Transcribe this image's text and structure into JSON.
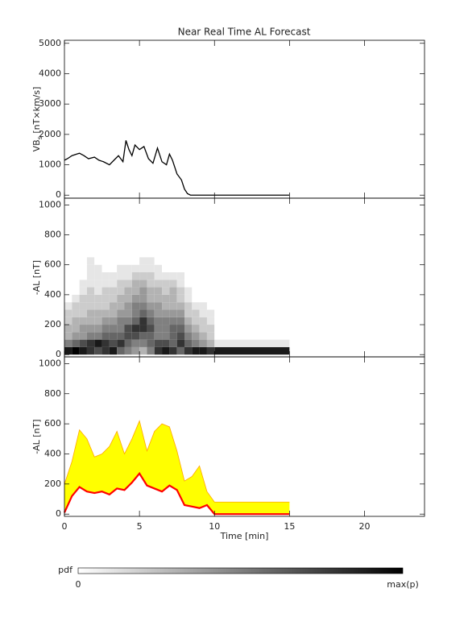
{
  "title": "Near Real Time AL Forecast",
  "chart_data": [
    {
      "type": "line",
      "ylabel": [
        "VB",
        "s",
        " [nT×km/s]"
      ],
      "color": "#000000",
      "xlim": [
        0,
        24
      ],
      "ylim": [
        -100,
        5100
      ],
      "yticks": [
        0,
        1000,
        2000,
        3000,
        4000,
        5000
      ],
      "x": [
        0,
        0.2,
        0.5,
        0.8,
        1.0,
        1.3,
        1.6,
        2.0,
        2.3,
        2.6,
        3.0,
        3.3,
        3.6,
        3.9,
        4.1,
        4.3,
        4.5,
        4.7,
        5.0,
        5.3,
        5.6,
        5.9,
        6.2,
        6.5,
        6.8,
        7.0,
        7.2,
        7.5,
        7.8,
        8.0,
        8.2,
        8.4,
        15
      ],
      "series": [
        {
          "values": [
            1150,
            1200,
            1300,
            1350,
            1380,
            1300,
            1200,
            1250,
            1150,
            1100,
            1000,
            1150,
            1300,
            1100,
            1800,
            1500,
            1300,
            1650,
            1500,
            1600,
            1200,
            1050,
            1550,
            1100,
            1000,
            1350,
            1150,
            700,
            500,
            200,
            50,
            0,
            0
          ]
        }
      ]
    },
    {
      "type": "heatmap",
      "ylabel": "-AL [nT]",
      "xlim": [
        0,
        24
      ],
      "ylim": [
        -15,
        1045
      ],
      "yticks": [
        0,
        200,
        400,
        600,
        800,
        1000
      ],
      "x_edges": [
        0,
        0.5,
        1,
        1.5,
        2,
        2.5,
        3,
        3.5,
        4,
        4.5,
        5,
        5.5,
        6,
        6.5,
        7,
        7.5,
        8,
        8.5,
        9,
        9.5,
        10,
        15
      ],
      "y_edges": [
        0,
        50,
        100,
        150,
        200,
        250,
        300,
        350,
        400,
        450,
        500,
        550,
        600,
        650
      ],
      "z": [
        [
          0.9,
          0.5,
          0.3,
          0.3,
          0.2,
          0.2,
          0.1,
          0,
          0,
          0,
          0,
          0,
          0
        ],
        [
          1,
          0.6,
          0.4,
          0.3,
          0.3,
          0.2,
          0.2,
          0.1,
          0,
          0,
          0,
          0,
          0
        ],
        [
          0.9,
          0.7,
          0.4,
          0.4,
          0.3,
          0.2,
          0.2,
          0.2,
          0.1,
          0.1,
          0,
          0,
          0
        ],
        [
          0.8,
          0.8,
          0.5,
          0.4,
          0.3,
          0.3,
          0.2,
          0.2,
          0.2,
          0.1,
          0.1,
          0.1,
          0.1
        ],
        [
          0.7,
          0.9,
          0.5,
          0.4,
          0.3,
          0.3,
          0.2,
          0.2,
          0.1,
          0.1,
          0.1,
          0.1,
          0
        ],
        [
          0.8,
          0.8,
          0.6,
          0.5,
          0.4,
          0.3,
          0.2,
          0.2,
          0.2,
          0.1,
          0.1,
          0,
          0
        ],
        [
          0.9,
          0.7,
          0.6,
          0.5,
          0.4,
          0.3,
          0.3,
          0.2,
          0.2,
          0.1,
          0.1,
          0,
          0
        ],
        [
          0.6,
          0.8,
          0.6,
          0.5,
          0.5,
          0.4,
          0.3,
          0.3,
          0.2,
          0.2,
          0.1,
          0.1,
          0
        ],
        [
          0.5,
          0.6,
          0.7,
          0.7,
          0.5,
          0.4,
          0.4,
          0.3,
          0.3,
          0.2,
          0.1,
          0.1,
          0
        ],
        [
          0.4,
          0.5,
          0.7,
          0.8,
          0.6,
          0.5,
          0.5,
          0.4,
          0.3,
          0.3,
          0.2,
          0.1,
          0
        ],
        [
          0.3,
          0.5,
          0.6,
          0.8,
          0.8,
          0.6,
          0.5,
          0.4,
          0.4,
          0.3,
          0.2,
          0.1,
          0.1
        ],
        [
          0.5,
          0.6,
          0.6,
          0.7,
          0.6,
          0.5,
          0.4,
          0.3,
          0.3,
          0.2,
          0.2,
          0.1,
          0.1
        ],
        [
          0.8,
          0.7,
          0.5,
          0.5,
          0.5,
          0.4,
          0.4,
          0.3,
          0.3,
          0.2,
          0.1,
          0.1,
          0
        ],
        [
          0.9,
          0.7,
          0.5,
          0.5,
          0.5,
          0.4,
          0.3,
          0.3,
          0.2,
          0.2,
          0.1,
          0,
          0
        ],
        [
          0.8,
          0.6,
          0.6,
          0.6,
          0.5,
          0.4,
          0.3,
          0.3,
          0.3,
          0.2,
          0.1,
          0,
          0
        ],
        [
          0.6,
          0.8,
          0.7,
          0.6,
          0.5,
          0.4,
          0.3,
          0.2,
          0.2,
          0.1,
          0.1,
          0,
          0
        ],
        [
          0.8,
          0.6,
          0.5,
          0.4,
          0.3,
          0.2,
          0.2,
          0.1,
          0.1,
          0,
          0,
          0,
          0
        ],
        [
          0.9,
          0.5,
          0.4,
          0.3,
          0.2,
          0.2,
          0.1,
          0,
          0,
          0,
          0,
          0,
          0
        ],
        [
          0.9,
          0.4,
          0.3,
          0.2,
          0.2,
          0.1,
          0.1,
          0,
          0,
          0,
          0,
          0,
          0
        ],
        [
          0.8,
          0.3,
          0.2,
          0.2,
          0.1,
          0.1,
          0,
          0,
          0,
          0,
          0,
          0,
          0
        ],
        [
          0.9,
          0.1,
          0,
          0,
          0,
          0,
          0,
          0,
          0,
          0,
          0,
          0,
          0
        ]
      ]
    },
    {
      "type": "band",
      "ylabel": "-AL [nT]",
      "xlabel": "Time [min]",
      "xlim": [
        0,
        24
      ],
      "xticks": [
        0,
        5,
        10,
        15,
        20
      ],
      "ylim": [
        -15,
        1045
      ],
      "yticks": [
        0,
        200,
        400,
        600,
        800,
        1000
      ],
      "x": [
        0,
        0.5,
        1,
        1.5,
        2,
        2.5,
        3,
        3.5,
        4,
        4.5,
        5,
        5.5,
        6,
        6.5,
        7,
        7.5,
        8,
        8.5,
        9,
        9.5,
        10,
        15
      ],
      "series": [
        {
          "color": "#ff0000",
          "values": [
            10,
            120,
            180,
            150,
            140,
            150,
            130,
            170,
            160,
            210,
            270,
            190,
            170,
            150,
            190,
            160,
            60,
            50,
            40,
            60,
            0,
            0
          ]
        },
        {
          "color": "#ffa500",
          "fill": "#ffff00",
          "values": [
            200,
            350,
            560,
            500,
            380,
            400,
            450,
            550,
            400,
            500,
            620,
            420,
            550,
            600,
            580,
            420,
            220,
            250,
            320,
            150,
            80,
            80
          ]
        }
      ]
    }
  ],
  "colorbar": {
    "label": "pdf",
    "min_label": "0",
    "max_label": "max(p)"
  }
}
